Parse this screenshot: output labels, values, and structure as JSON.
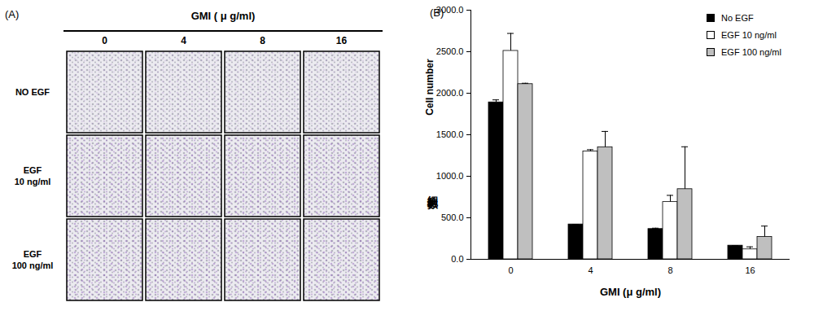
{
  "panel_a": {
    "label": "(A)",
    "title": "GMI ( μ g/ml)",
    "columns": [
      "0",
      "4",
      "8",
      "16"
    ],
    "rows": [
      "NO EGF",
      "EGF 10 ng/ml",
      "EGF 100 ng/ml"
    ]
  },
  "chart_data": {
    "type": "bar",
    "panel_label": "(B)",
    "x_label": "GMI (μ g/ml)",
    "y_label": "Cell number",
    "y_label_2": "細胞數",
    "categories": [
      0,
      4,
      8,
      16
    ],
    "series": [
      {
        "name": "No EGF",
        "color": "#000000",
        "values": [
          1890,
          420,
          365,
          165
        ],
        "errors": [
          30,
          0,
          10,
          0
        ]
      },
      {
        "name": "EGF 10 ng/ml",
        "color": "#ffffff",
        "values": [
          2510,
          1300,
          690,
          120
        ],
        "errors": [
          210,
          20,
          80,
          30
        ]
      },
      {
        "name": "EGF 100 ng/ml",
        "color": "#bfbfbf",
        "values": [
          2110,
          1350,
          845,
          270
        ],
        "errors": [
          10,
          190,
          510,
          130
        ]
      }
    ],
    "ylim": [
      0,
      3000
    ],
    "yticks": [
      {
        "value": 0,
        "label": "0.0"
      },
      {
        "value": 500,
        "label": "500.0"
      },
      {
        "value": 1000,
        "label": "1000.0"
      },
      {
        "value": 1500,
        "label": "1500.0"
      },
      {
        "value": 2000,
        "label": "2000.0"
      },
      {
        "value": 2500,
        "label": "2500.0"
      },
      {
        "value": 3000,
        "label": "3000.0"
      }
    ],
    "legend": "top-right"
  }
}
